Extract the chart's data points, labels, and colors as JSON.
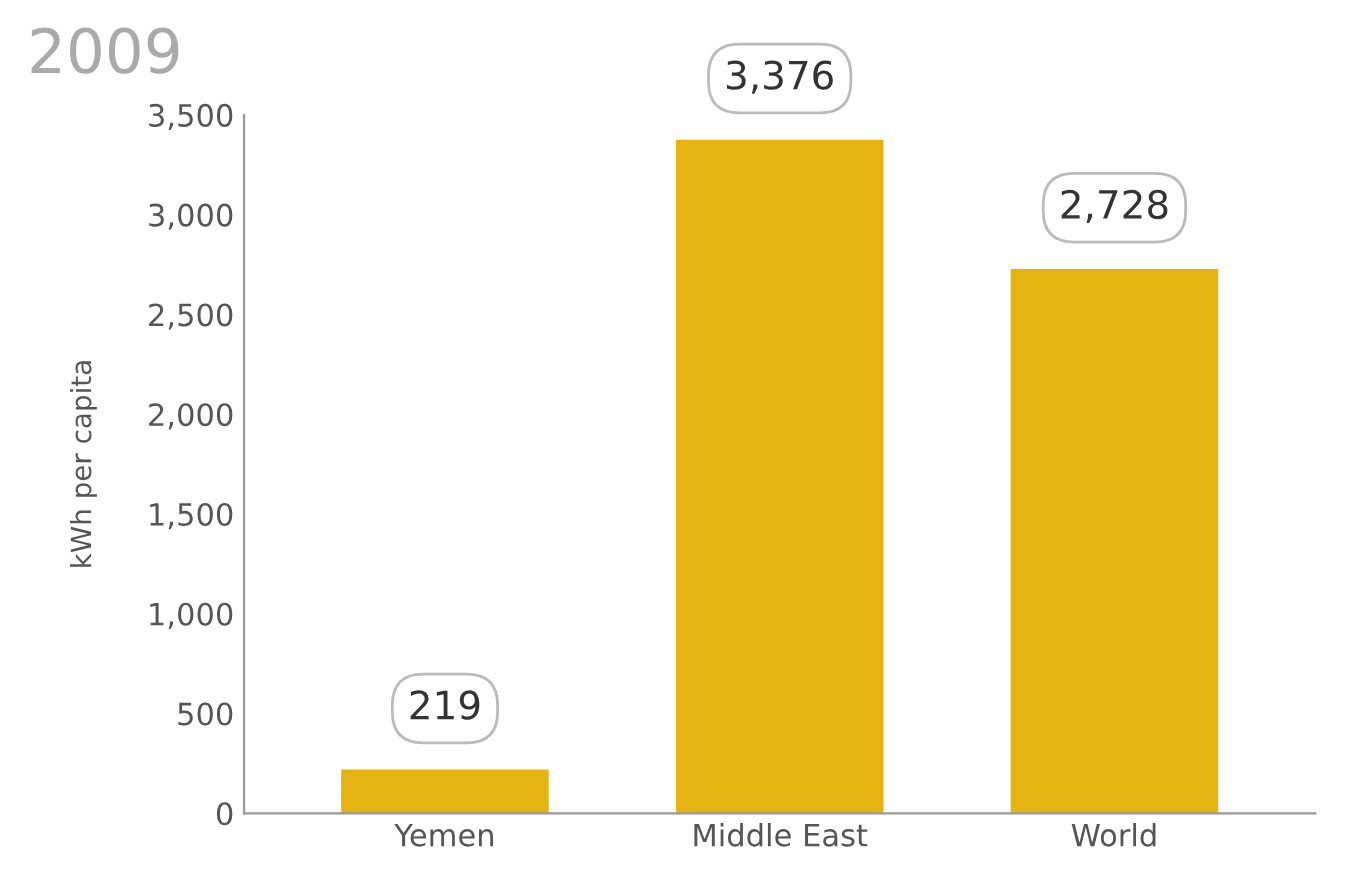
{
  "chart_data": {
    "type": "bar",
    "ylabel": "kWh per capita",
    "subtitle": "2009",
    "categories": [
      "Yemen",
      "Middle East",
      "World"
    ],
    "values": [
      219,
      3376,
      2728
    ],
    "color": "#e6b412",
    "ylim": [
      0,
      3500
    ],
    "yticks": [
      0,
      500,
      {
        "value": 1000,
        "label": "1,000"
      },
      {
        "value": 1500,
        "label": "1,500"
      },
      {
        "value": 2000,
        "label": "2,000"
      },
      {
        "value": 2500,
        "label": "2,500"
      },
      {
        "value": 3000,
        "label": "3,000"
      },
      {
        "value": 3500,
        "label": "3,500"
      }
    ],
    "value_labels": [
      "219",
      "3,376",
      "2,728"
    ],
    "grid": false,
    "legend": false
  }
}
